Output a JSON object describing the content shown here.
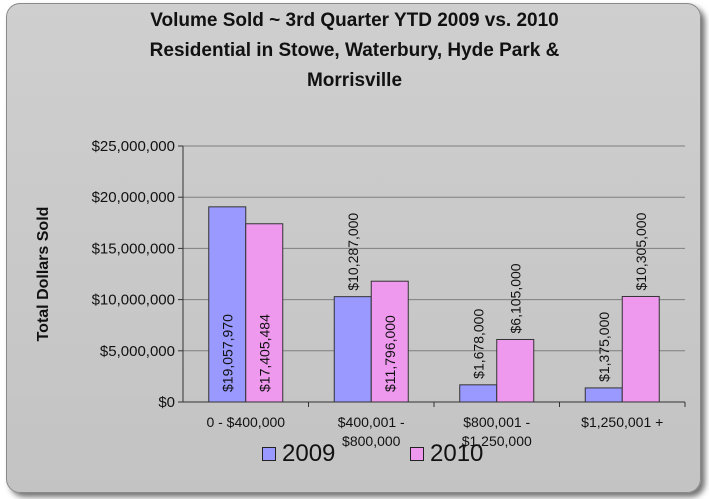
{
  "chart_data": {
    "type": "bar",
    "title_lines": [
      "Volume Sold ~ 3rd Quarter YTD 2009 vs. 2010",
      "Residential  in Stowe, Waterbury, Hyde Park &",
      "Morrisville"
    ],
    "ylabel": "Total Dollars Sold",
    "xlabel": "",
    "ylim": [
      0,
      25000000
    ],
    "yticks": [
      {
        "value": 0,
        "label": "$0"
      },
      {
        "value": 5000000,
        "label": "$5,000,000"
      },
      {
        "value": 10000000,
        "label": "$10,000,000"
      },
      {
        "value": 15000000,
        "label": "$15,000,000"
      },
      {
        "value": 20000000,
        "label": "$20,000,000"
      },
      {
        "value": 25000000,
        "label": "$25,000,000"
      }
    ],
    "categories": [
      [
        "0 - $400,000"
      ],
      [
        "$400,001 -",
        "$800,000"
      ],
      [
        "$800,001 -",
        "$1,250,000"
      ],
      [
        "$1,250,001 +"
      ]
    ],
    "series": [
      {
        "name": "2009",
        "color": "#9999ff",
        "values": [
          19057970,
          10287000,
          1678000,
          1375000
        ],
        "labels": [
          "$19,057,970",
          "$10,287,000",
          "$1,678,000",
          "$1,375,000"
        ]
      },
      {
        "name": "2010",
        "color": "#ee99ee",
        "values": [
          17405484,
          11796000,
          6105000,
          10305000
        ],
        "labels": [
          "$17,405,484",
          "$11,796,000",
          "$6,105,000",
          "$10,305,000"
        ]
      }
    ],
    "grid": true,
    "legend": "bottom",
    "colors": {
      "background": "#c8c8c8",
      "gridline": "#7f7f7f",
      "bar_border": "#333333"
    }
  }
}
